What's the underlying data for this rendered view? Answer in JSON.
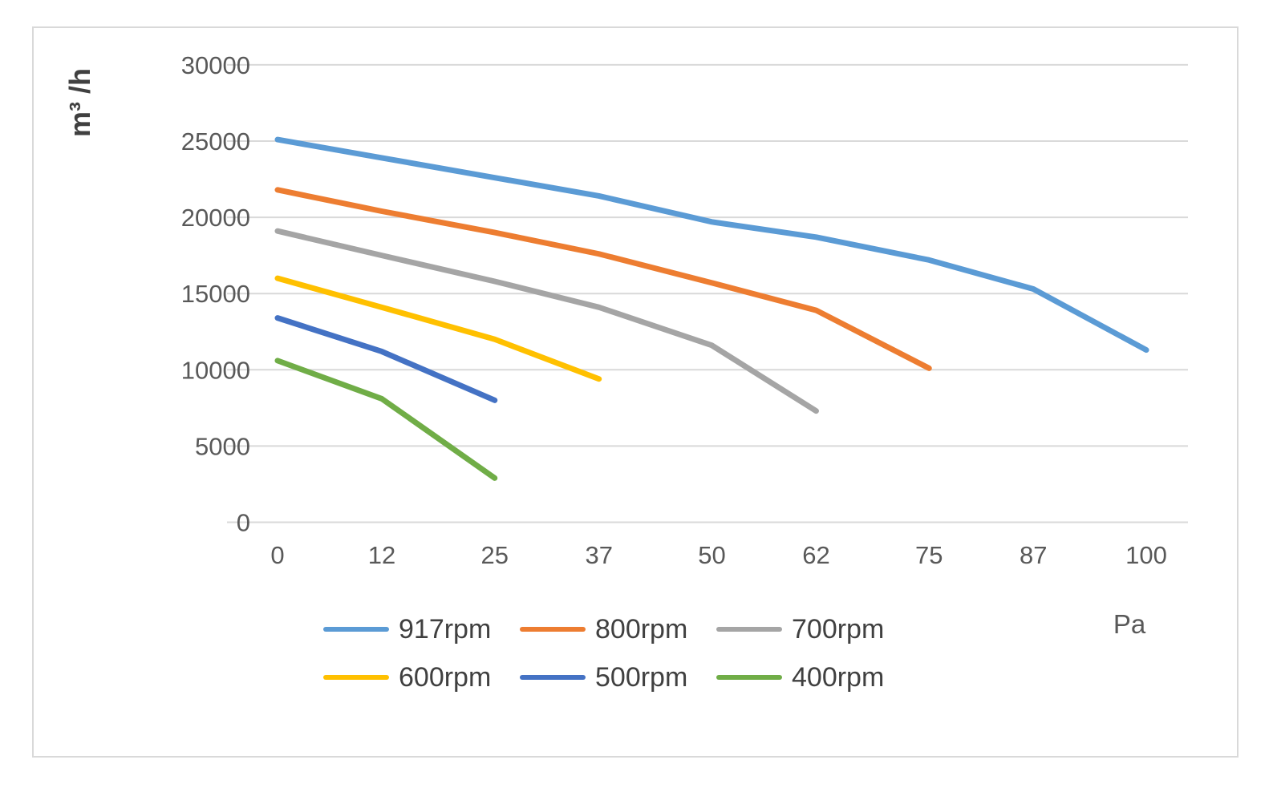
{
  "chart_data": {
    "type": "line",
    "title": "",
    "xlabel": "Pa",
    "ylabel": "m³ /h",
    "x_ticks": [
      0,
      12,
      25,
      37,
      50,
      62,
      75,
      87,
      100
    ],
    "y_ticks": [
      0,
      5000,
      10000,
      15000,
      20000,
      25000,
      30000
    ],
    "xlim": [
      0,
      100
    ],
    "ylim": [
      0,
      30000
    ],
    "grid": "horizontal",
    "legend_position": "bottom",
    "colors": {
      "gridline": "#d9d9d9",
      "tick_text": "#595959",
      "axis_title_text": "#404040"
    },
    "series": [
      {
        "name": "917rpm",
        "color": "#5B9BD5",
        "x": [
          0,
          12,
          25,
          37,
          50,
          62,
          75,
          87,
          100
        ],
        "values": [
          25100,
          23900,
          22600,
          21400,
          19700,
          18700,
          17200,
          15300,
          11300
        ]
      },
      {
        "name": "800rpm",
        "color": "#ED7D31",
        "x": [
          0,
          12,
          25,
          37,
          50,
          62,
          75
        ],
        "values": [
          21800,
          20400,
          19000,
          17600,
          15700,
          13900,
          10100
        ]
      },
      {
        "name": "700rpm",
        "color": "#A5A5A5",
        "x": [
          0,
          12,
          25,
          37,
          50,
          62
        ],
        "values": [
          19100,
          17500,
          15800,
          14100,
          11600,
          7300
        ]
      },
      {
        "name": "600rpm",
        "color": "#FFC000",
        "x": [
          0,
          12,
          25,
          37
        ],
        "values": [
          16000,
          14100,
          12000,
          9400
        ]
      },
      {
        "name": "500rpm",
        "color": "#4472C4",
        "x": [
          0,
          12,
          25
        ],
        "values": [
          13400,
          11200,
          8000
        ]
      },
      {
        "name": "400rpm",
        "color": "#70AD47",
        "x": [
          0,
          12,
          25
        ],
        "values": [
          10600,
          8100,
          2900
        ]
      }
    ]
  }
}
